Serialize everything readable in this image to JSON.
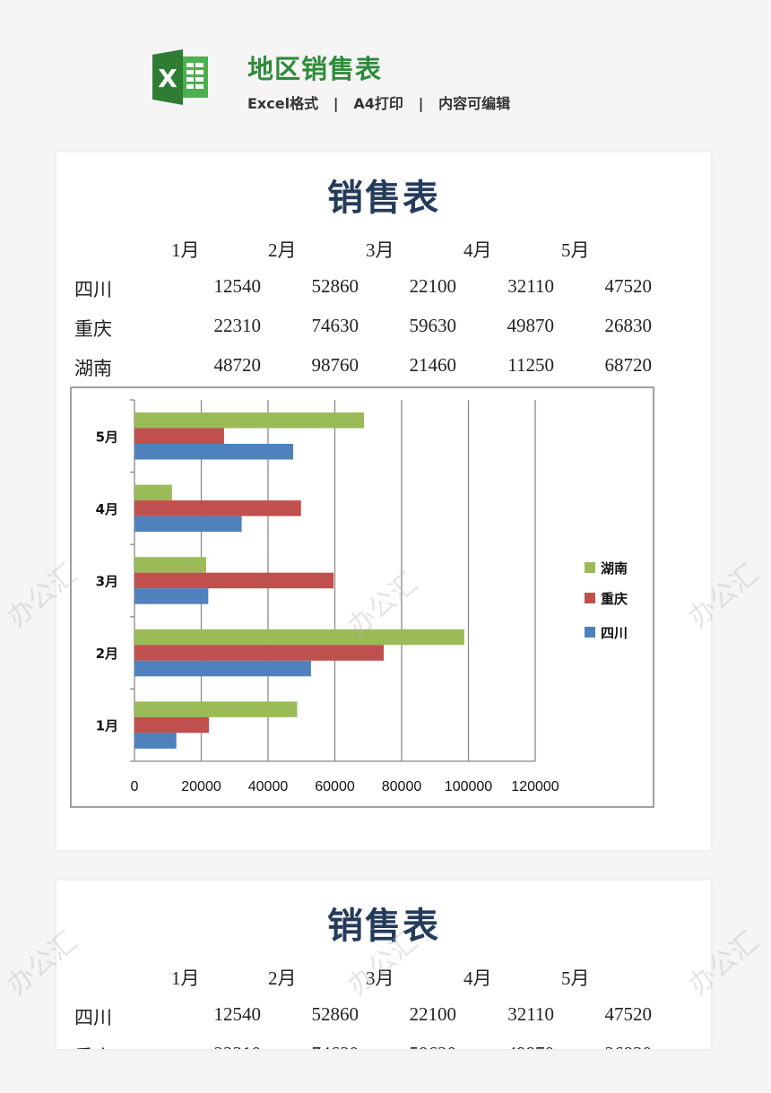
{
  "header": {
    "app_icon": "excel-icon",
    "title": "地区销售表",
    "tags": [
      "Excel格式",
      "A4打印",
      "内容可编辑"
    ],
    "separator": "|"
  },
  "sheet": {
    "title": "销售表",
    "months": [
      "1月",
      "2月",
      "3月",
      "4月",
      "5月"
    ],
    "rows": [
      {
        "region": "四川",
        "values": [
          12540,
          52860,
          22100,
          32110,
          47520
        ]
      },
      {
        "region": "重庆",
        "values": [
          22310,
          74630,
          59630,
          49870,
          26830
        ]
      },
      {
        "region": "湖南",
        "values": [
          48720,
          98760,
          21460,
          11250,
          68720
        ]
      }
    ]
  },
  "watermark": "办公汇",
  "chart_data": {
    "type": "bar",
    "orientation": "horizontal",
    "categories": [
      "1月",
      "2月",
      "3月",
      "4月",
      "5月"
    ],
    "series": [
      {
        "name": "四川",
        "color": "#4f81bd",
        "values": [
          12540,
          52860,
          22100,
          32110,
          47520
        ]
      },
      {
        "name": "重庆",
        "color": "#c0504d",
        "values": [
          22310,
          74630,
          59630,
          49870,
          26830
        ]
      },
      {
        "name": "湖南",
        "color": "#9bbb59",
        "values": [
          48720,
          98760,
          21460,
          11250,
          68720
        ]
      }
    ],
    "xlim": [
      0,
      120000
    ],
    "xticks": [
      0,
      20000,
      40000,
      60000,
      80000,
      100000,
      120000
    ],
    "grid": true,
    "legend": "right"
  }
}
